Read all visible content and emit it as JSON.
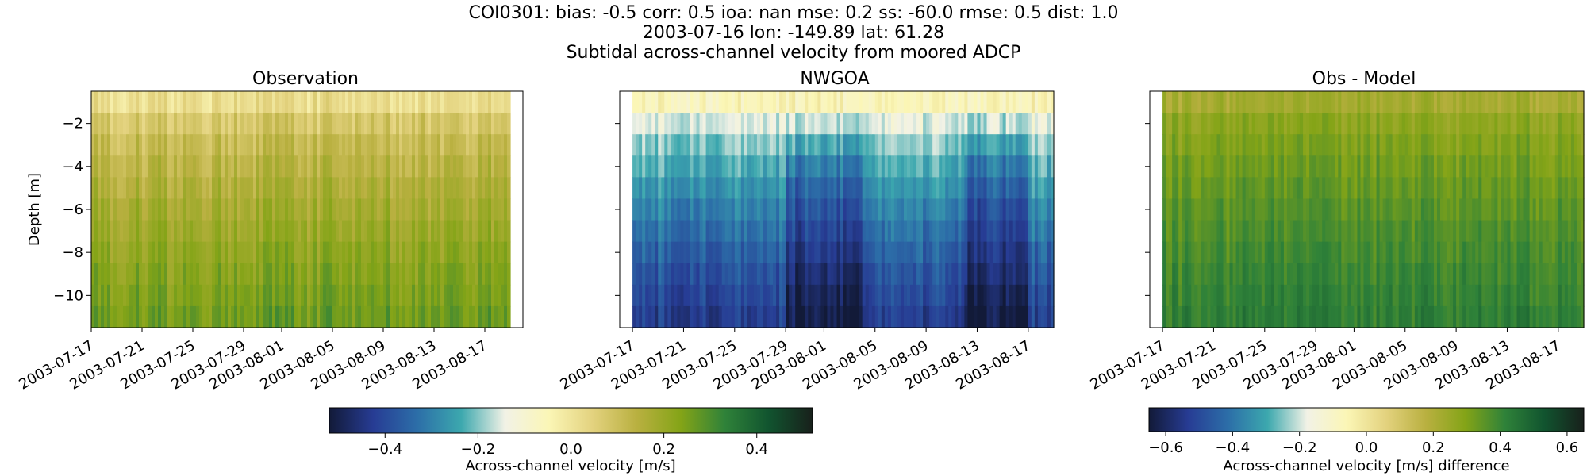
{
  "figure": {
    "suptitle": [
      "COI0301: bias: -0.5  corr: 0.5  ioa: nan  mse: 0.2  ss: -60.0  rmse: 0.5  dist: 1.0",
      "2003-07-16 lon: -149.89 lat: 61.28",
      "Subtidal across-channel velocity from moored ADCP"
    ]
  },
  "chart_data": [
    {
      "type": "heatmap",
      "title": "Observation",
      "ylabel": "Depth [m]",
      "xlim": [
        "2003-07-17",
        "2003-08-20"
      ],
      "ylim": [
        -11.5,
        -0.5
      ],
      "x_ticks": [
        "2003-07-17",
        "2003-07-21",
        "2003-07-25",
        "2003-07-29",
        "2003-08-01",
        "2003-08-05",
        "2003-08-09",
        "2003-08-13",
        "2003-08-17"
      ],
      "y_ticks": [
        -2,
        -4,
        -6,
        -8,
        -10
      ],
      "data_range": {
        "start": "2003-07-17",
        "end": "2003-08-19",
        "depth_top": -0.5,
        "depth_bottom": -11.5
      },
      "colormap": "delta",
      "value_at_surface": 0.02,
      "value_at_bottom": 0.26
    },
    {
      "type": "heatmap",
      "title": "NWGOA",
      "xlim": [
        "2003-07-16",
        "2003-08-19"
      ],
      "ylim": [
        -11.5,
        -0.5
      ],
      "x_ticks": [
        "2003-07-17",
        "2003-07-21",
        "2003-07-25",
        "2003-07-29",
        "2003-08-01",
        "2003-08-05",
        "2003-08-09",
        "2003-08-13",
        "2003-08-17"
      ],
      "y_ticks": [
        -2,
        -4,
        -6,
        -8,
        -10
      ],
      "data_range": {
        "start": "2003-07-17",
        "end": "2003-08-19",
        "depth_top": -0.5,
        "depth_bottom": -11.5
      },
      "colormap": "delta",
      "value_at_surface": -0.05,
      "value_at_bottom": -0.42,
      "strongest_periods": [
        "2003-07-29 to 2003-08-04",
        "2003-08-12 to 2003-08-17"
      ]
    },
    {
      "type": "heatmap",
      "title": "Obs - Model",
      "xlim": [
        "2003-07-16",
        "2003-08-19"
      ],
      "ylim": [
        -11.5,
        -0.5
      ],
      "x_ticks": [
        "2003-07-17",
        "2003-07-21",
        "2003-07-25",
        "2003-07-29",
        "2003-08-01",
        "2003-08-05",
        "2003-08-09",
        "2003-08-13",
        "2003-08-17"
      ],
      "y_ticks": [
        -2,
        -4,
        -6,
        -8,
        -10
      ],
      "data_range": {
        "start": "2003-07-17",
        "end": "2003-08-19",
        "depth_top": -0.5,
        "depth_bottom": -11.5
      },
      "colormap": "delta",
      "value_at_surface": 0.22,
      "value_at_bottom": 0.42
    }
  ],
  "colorbars": [
    {
      "label": "Across-channel velocity [m/s]",
      "range": [
        -0.52,
        0.52
      ],
      "ticks": [
        -0.4,
        -0.2,
        0.0,
        0.2,
        0.4
      ],
      "tick_labels": [
        "−0.4",
        "−0.2",
        "0.0",
        "0.2",
        "0.4"
      ]
    },
    {
      "label": "Across-channel velocity [m/s] difference",
      "range": [
        -0.65,
        0.65
      ],
      "ticks": [
        -0.6,
        -0.4,
        -0.2,
        0.0,
        0.2,
        0.4,
        0.6
      ],
      "tick_labels": [
        "−0.6",
        "−0.4",
        "−0.2",
        "0.0",
        "0.2",
        "0.4",
        "0.6"
      ]
    }
  ],
  "colors": {
    "colormap_stops": [
      "#121a38",
      "#273c94",
      "#2c6ea8",
      "#3ca8ae",
      "#f2f2e6",
      "#fbf6b6",
      "#e3d27e",
      "#b9b040",
      "#84a417",
      "#2f8239",
      "#11542f",
      "#18201b"
    ]
  }
}
